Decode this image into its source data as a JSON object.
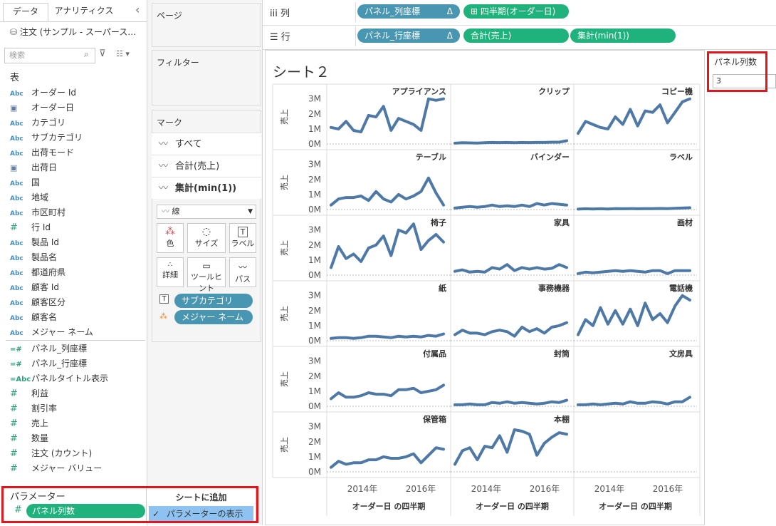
{
  "left": {
    "tabs": [
      "データ",
      "アナリティクス"
    ],
    "collapse_glyph": "‹",
    "datasource": "注文 (サンプル - スーパース…",
    "search_placeholder": "検索",
    "tables_header": "表",
    "fields": [
      {
        "icon": "Abc",
        "name": "オーダー Id"
      },
      {
        "icon": "cal",
        "name": "オーダー日"
      },
      {
        "icon": "Abc",
        "name": "カテゴリ"
      },
      {
        "icon": "Abc",
        "name": "サブカテゴリ"
      },
      {
        "icon": "Abc",
        "name": "出荷モード"
      },
      {
        "icon": "cal",
        "name": "出荷日"
      },
      {
        "icon": "Abc",
        "name": "国"
      },
      {
        "icon": "Abc",
        "name": "地域"
      },
      {
        "icon": "Abc",
        "name": "市区町村"
      },
      {
        "icon": "#",
        "name": "行 Id"
      },
      {
        "icon": "Abc",
        "name": "製品 Id"
      },
      {
        "icon": "Abc",
        "name": "製品名"
      },
      {
        "icon": "Abc",
        "name": "都道府県"
      },
      {
        "icon": "Abc",
        "name": "顧客 Id"
      },
      {
        "icon": "Abc",
        "name": "顧客区分"
      },
      {
        "icon": "Abc",
        "name": "顧客名"
      },
      {
        "icon": "Abc",
        "name": "メジャー ネーム"
      }
    ],
    "measures": [
      {
        "icon": "=#",
        "name": "パネル_列座標"
      },
      {
        "icon": "=#",
        "name": "パネル_行座標"
      },
      {
        "icon": "=Abc",
        "name": "パネルタイトル表示"
      },
      {
        "icon": "#",
        "name": "利益"
      },
      {
        "icon": "#",
        "name": "割引率"
      },
      {
        "icon": "#",
        "name": "売上"
      },
      {
        "icon": "#",
        "name": "数量"
      },
      {
        "icon": "#",
        "name": "注文 (カウント)"
      },
      {
        "icon": "#",
        "name": "メジャー バリュー"
      }
    ],
    "parameters_header": "パラメーター",
    "parameter_pill": "パネル列数"
  },
  "shelf_column": {
    "pages": "ページ",
    "filters": "フィルター",
    "marks_title": "マーク",
    "marks_rows": [
      "すべて",
      "合計(売上)",
      "集計(min(1))"
    ],
    "mark_type": "線",
    "mark_buttons": [
      "色",
      "サイズ",
      "ラベル",
      "詳細",
      "ツールヒント",
      "パス"
    ],
    "mark_pills": [
      "サブカテゴリ",
      "メジャー ネーム"
    ]
  },
  "shelves": {
    "columns_label": "列",
    "rows_label": "行",
    "col_pills": [
      "パネル_列座標",
      "四半期(オーダー日)"
    ],
    "row_pills": [
      "パネル_行座標",
      "合計(売上)",
      "集計(min(1))"
    ],
    "delta": "Δ"
  },
  "menu": {
    "title": "シートに追加",
    "item": "パラメーターの表示",
    "check": "✓"
  },
  "parameter_card": {
    "title": "パネル列数",
    "value": "3"
  },
  "chart_data": {
    "type": "line",
    "title": "シート２",
    "ylabel": "売上",
    "xlabel": "オーダー日 の四半期",
    "y_ticks": [
      "0M",
      "1M",
      "2M",
      "3M"
    ],
    "x_ticks": [
      "2014年",
      "2016年"
    ],
    "ylim": [
      0,
      3.6
    ],
    "panels": [
      {
        "name": "アプライアンス",
        "values": [
          1.1,
          1.0,
          1.5,
          0.9,
          0.8,
          1.9,
          1.8,
          2.5,
          0.9,
          1.7,
          1.5,
          1.3,
          0.9,
          3.0,
          2.9,
          3.0
        ]
      },
      {
        "name": "クリップ",
        "values": [
          0.05,
          0.08,
          0.07,
          0.06,
          0.08,
          0.1,
          0.09,
          0.1,
          0.08,
          0.1,
          0.09,
          0.1,
          0.1,
          0.12,
          0.12,
          0.22
        ]
      },
      {
        "name": "コピー機",
        "values": [
          0.7,
          1.5,
          1.3,
          1.1,
          1.0,
          1.8,
          1.3,
          2.3,
          1.2,
          2.2,
          2.1,
          2.6,
          1.4,
          2.1,
          2.8,
          3.0
        ]
      },
      {
        "name": "テーブル",
        "values": [
          0.3,
          0.7,
          0.8,
          0.8,
          0.9,
          0.6,
          1.2,
          0.7,
          0.5,
          1.0,
          0.7,
          0.9,
          1.2,
          2.1,
          1.1,
          0.3
        ]
      },
      {
        "name": "バインダー",
        "values": [
          0.1,
          0.15,
          0.2,
          0.15,
          0.2,
          0.3,
          0.2,
          0.25,
          0.2,
          0.3,
          0.2,
          0.4,
          0.3,
          0.4,
          0.35,
          0.3
        ]
      },
      {
        "name": "ラベル",
        "values": [
          0.03,
          0.05,
          0.04,
          0.05,
          0.04,
          0.06,
          0.05,
          0.06,
          0.05,
          0.06,
          0.06,
          0.07,
          0.06,
          0.08,
          0.1,
          0.12
        ]
      },
      {
        "name": "椅子",
        "values": [
          0.5,
          1.9,
          1.1,
          1.4,
          0.9,
          1.8,
          2.0,
          2.6,
          1.3,
          3.0,
          2.8,
          3.4,
          1.7,
          2.3,
          2.7,
          2.2
        ]
      },
      {
        "name": "家具",
        "values": [
          0.25,
          0.35,
          0.2,
          0.25,
          0.2,
          0.5,
          0.4,
          0.7,
          0.3,
          0.5,
          0.4,
          0.5,
          0.4,
          0.45,
          0.7,
          0.5
        ]
      },
      {
        "name": "画材",
        "values": [
          0.1,
          0.2,
          0.15,
          0.2,
          0.25,
          0.3,
          0.25,
          0.3,
          0.25,
          0.2,
          0.3,
          0.3,
          0.1,
          0.3,
          0.3,
          0.3
        ]
      },
      {
        "name": "紙",
        "values": [
          0.15,
          0.2,
          0.2,
          0.15,
          0.2,
          0.3,
          0.3,
          0.25,
          0.2,
          0.3,
          0.25,
          0.3,
          0.25,
          0.35,
          0.3,
          0.45
        ]
      },
      {
        "name": "事務機器",
        "values": [
          0.4,
          0.7,
          0.5,
          0.5,
          0.4,
          0.6,
          0.7,
          0.6,
          0.3,
          0.9,
          0.6,
          0.8,
          0.5,
          0.9,
          1.0,
          1.2
        ]
      },
      {
        "name": "電話機",
        "values": [
          0.4,
          1.4,
          1.0,
          2.2,
          1.1,
          2.0,
          1.1,
          2.1,
          1.0,
          2.5,
          1.4,
          1.8,
          1.2,
          2.3,
          3.0,
          2.7
        ]
      },
      {
        "name": "付属品",
        "values": [
          0.5,
          0.9,
          0.6,
          0.6,
          0.7,
          0.9,
          0.8,
          0.8,
          0.7,
          1.1,
          1.1,
          1.2,
          0.9,
          1.0,
          1.1,
          1.4
        ]
      },
      {
        "name": "封筒",
        "values": [
          0.1,
          0.1,
          0.15,
          0.1,
          0.1,
          0.25,
          0.2,
          0.3,
          0.2,
          0.25,
          0.2,
          0.15,
          0.2,
          0.3,
          0.25,
          0.4
        ]
      },
      {
        "name": "文房具",
        "values": [
          0.1,
          0.1,
          0.15,
          0.1,
          0.15,
          0.2,
          0.15,
          0.3,
          0.2,
          0.2,
          0.3,
          0.25,
          0.15,
          0.3,
          0.3,
          0.6
        ]
      },
      {
        "name": "保管箱",
        "values": [
          0.3,
          0.7,
          0.5,
          0.6,
          0.6,
          0.8,
          0.8,
          1.0,
          0.9,
          0.9,
          1.0,
          1.2,
          0.6,
          1.1,
          1.6,
          1.5
        ]
      },
      {
        "name": "本棚",
        "values": [
          0.5,
          1.4,
          1.6,
          0.8,
          1.7,
          1.6,
          2.4,
          1.3,
          2.8,
          2.7,
          2.5,
          1.1,
          1.9,
          2.3,
          2.6,
          2.5
        ]
      }
    ]
  },
  "colors": {
    "line": "#4e79a7",
    "pill_blue": "#4996b2",
    "pill_green": "#1fb27d",
    "highlight": "#e0161e"
  }
}
